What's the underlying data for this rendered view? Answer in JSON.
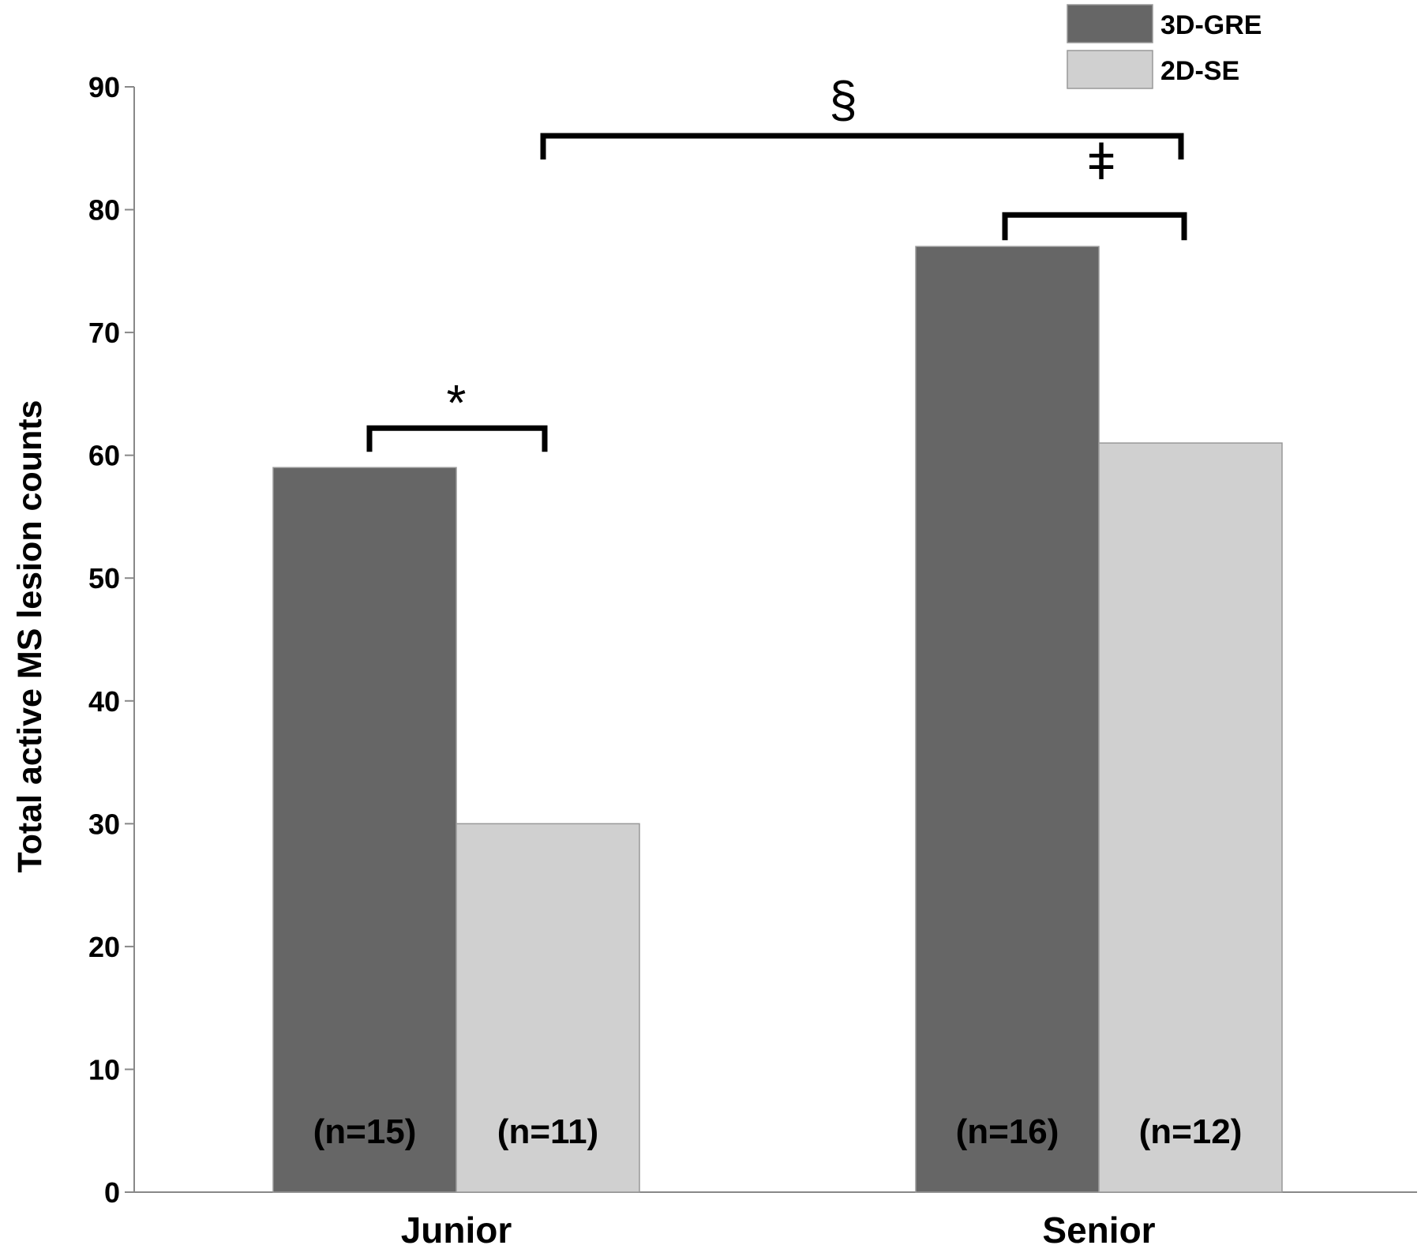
{
  "chart_data": {
    "type": "bar",
    "title": "",
    "xlabel": "",
    "ylabel": "Total  active MS lesion counts",
    "ylim": [
      0,
      90
    ],
    "yticks": [
      0,
      10,
      20,
      30,
      40,
      50,
      60,
      70,
      80,
      90
    ],
    "categories": [
      "Junior",
      "Senior"
    ],
    "series": [
      {
        "name": "3D-GRE",
        "color": "#666666",
        "values": [
          59,
          77
        ],
        "bar_labels": [
          "(n=15)",
          "(n=16)"
        ]
      },
      {
        "name": "2D-SE",
        "color": "#d0d0d0",
        "values": [
          30,
          61
        ],
        "bar_labels": [
          "(n=11)",
          "(n=12)"
        ]
      }
    ],
    "legend": {
      "position": "top-right"
    },
    "grid": false,
    "annotations": [
      {
        "symbol": "*",
        "between": "Junior 3D-GRE vs Junior 2D-SE"
      },
      {
        "symbol": "ǂ",
        "between": "Senior 3D-GRE vs Senior 2D-SE"
      },
      {
        "symbol": "§",
        "between": "Junior 2D-SE vs Senior 2D-SE"
      }
    ]
  }
}
